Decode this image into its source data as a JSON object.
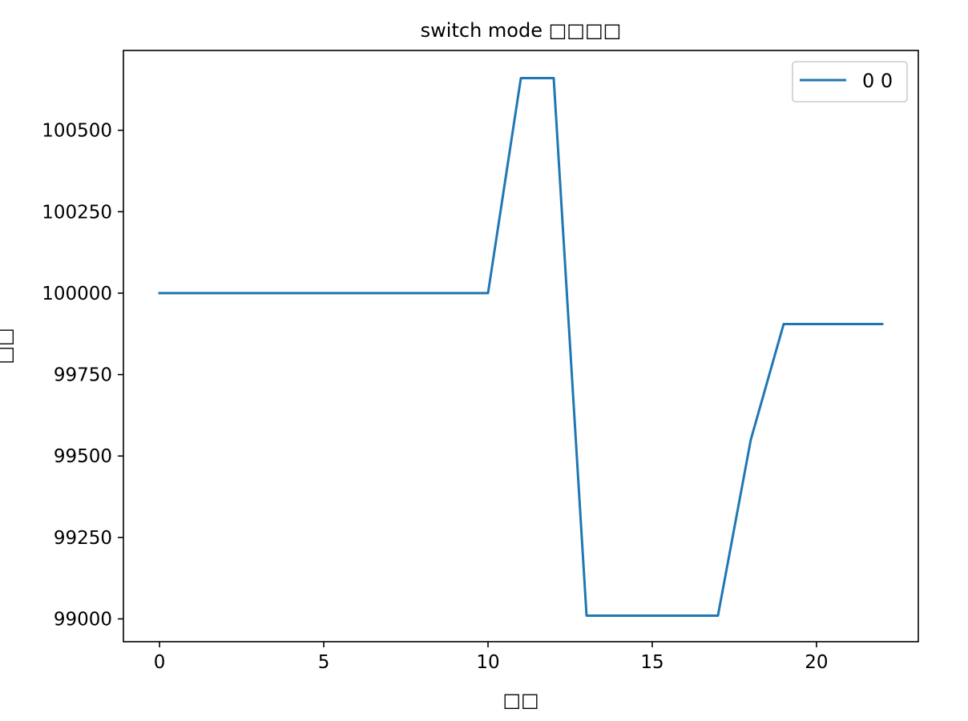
{
  "chart_data": {
    "type": "line",
    "title": "switch mode □□□□",
    "xlabel": "□□",
    "ylabel": "□□",
    "x": [
      0,
      1,
      2,
      3,
      4,
      5,
      6,
      7,
      8,
      9,
      10,
      11,
      12,
      13,
      14,
      15,
      16,
      17,
      18,
      19,
      20,
      21,
      22
    ],
    "series": [
      {
        "name": "0 0",
        "color": "#1f77b4",
        "values": [
          100000,
          100000,
          100000,
          100000,
          100000,
          100000,
          100000,
          100000,
          100000,
          100000,
          100000,
          100660,
          100660,
          99010,
          99010,
          99010,
          99010,
          99010,
          99550,
          99905,
          99905,
          99905,
          99905
        ]
      }
    ],
    "xlim": [
      -1.1,
      23.1
    ],
    "ylim": [
      98930,
      100745
    ],
    "xticks": [
      0,
      5,
      10,
      15,
      20
    ],
    "yticks": [
      99000,
      99250,
      99500,
      99750,
      100000,
      100250,
      100500
    ],
    "grid": false,
    "legend": "top-right"
  }
}
